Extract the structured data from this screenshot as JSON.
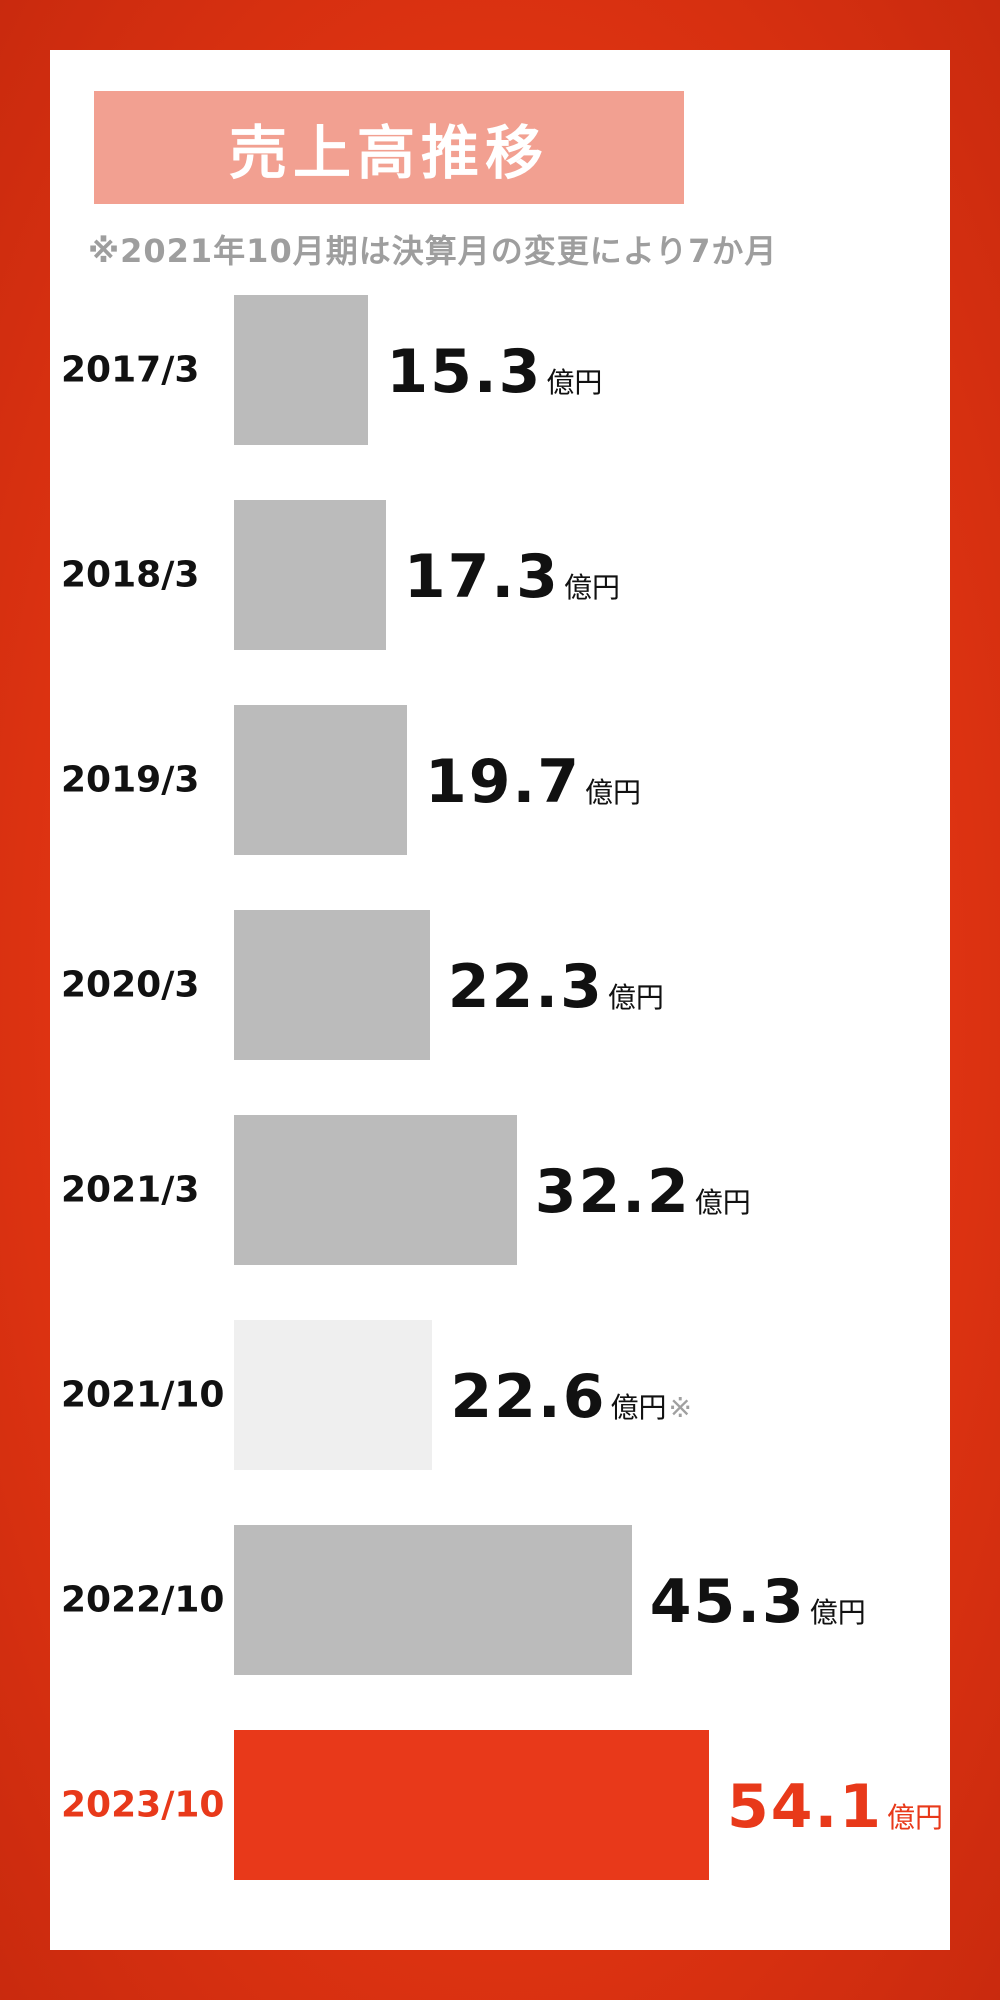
{
  "title": "売上高推移",
  "note": "※2021年10月期は決算月の変更により7か月",
  "colors": {
    "background": "#e03412",
    "title_box": "#f2a091",
    "bar_default": "#bbbbbb",
    "bar_partial": "#efefef",
    "bar_highlight": "#e8391a",
    "label_default": "#111111",
    "label_highlight": "#e8391a"
  },
  "chart_data": {
    "type": "bar",
    "orientation": "horizontal",
    "unit": "億円",
    "categories": [
      "2017/3",
      "2018/3",
      "2019/3",
      "2020/3",
      "2021/3",
      "2021/10",
      "2022/10",
      "2023/10"
    ],
    "values": [
      15.3,
      17.3,
      19.7,
      22.3,
      32.2,
      22.6,
      45.3,
      54.1
    ],
    "value_labels": [
      "15.3",
      "17.3",
      "19.7",
      "22.3",
      "32.2",
      "22.6",
      "45.3",
      "54.1"
    ],
    "footnote_marks": [
      "",
      "",
      "",
      "",
      "",
      "※",
      "",
      ""
    ],
    "highlight_index": 7,
    "partial_index": 5,
    "xlim": [
      0,
      54.1
    ]
  }
}
